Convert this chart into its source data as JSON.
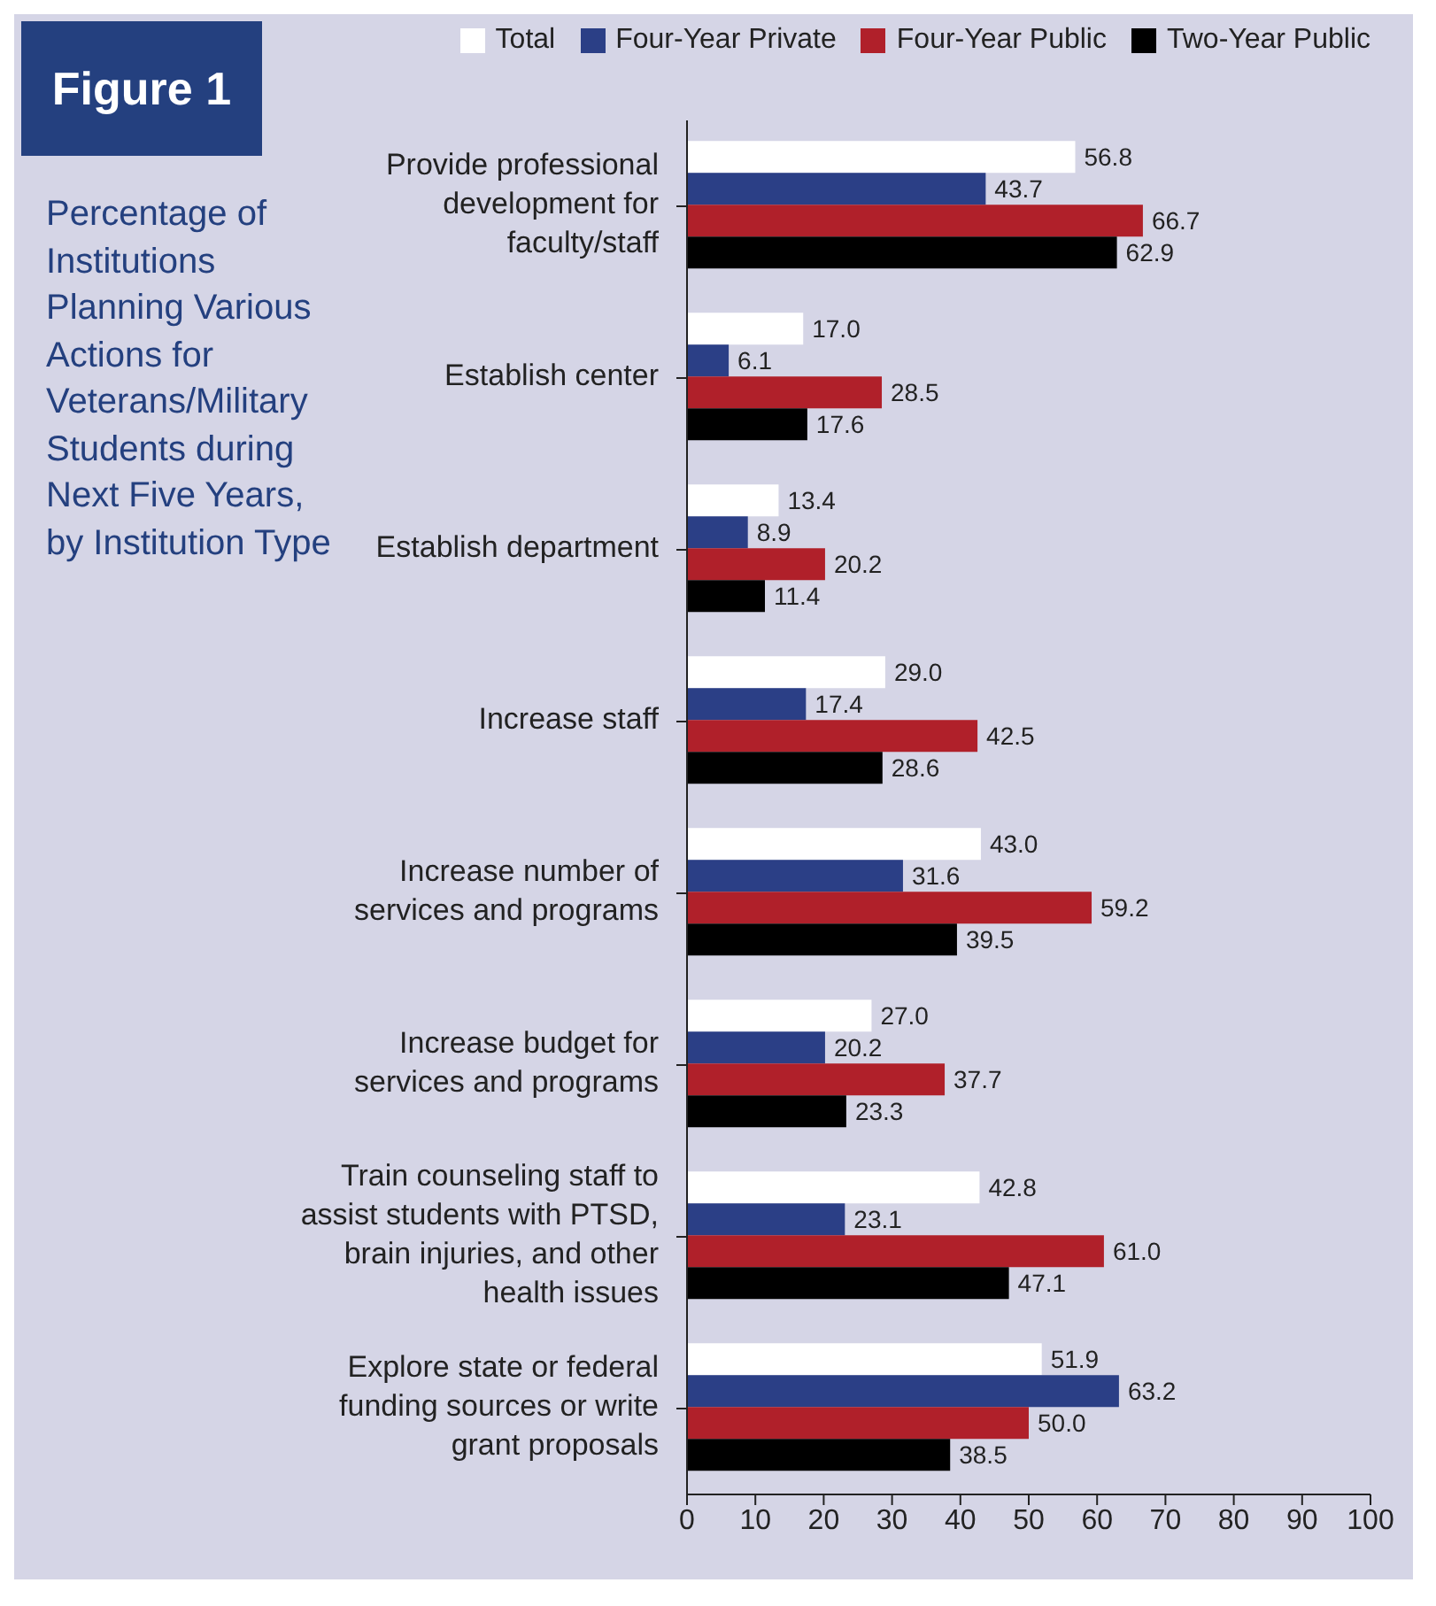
{
  "chart_data": {
    "type": "bar",
    "orientation": "horizontal",
    "title": "Percentage of Institutions Planning Various Actions for Veterans/Military Students during Next Five Years, by Institution Type",
    "annotations": [
      "Figure 1"
    ],
    "categories": [
      "Provide professional development for faculty/staff",
      "Establish center",
      "Establish department",
      "Increase staff",
      "Increase number of services and programs",
      "Increase budget for services and programs",
      "Train counseling staff to assist students with PTSD, brain injuries, and other health issues",
      "Explore state or federal funding sources or write grant proposals"
    ],
    "series": [
      {
        "name": "Total",
        "color": "#ffffff",
        "values": [
          56.8,
          17.0,
          13.4,
          29.0,
          43.0,
          27.0,
          42.8,
          51.9
        ],
        "value_labels": [
          "56.8",
          "17.0",
          "13.4",
          "29.0",
          "43.0",
          "27.0",
          "42.8",
          "51.9"
        ]
      },
      {
        "name": "Four-Year Private",
        "color": "#2b3f86",
        "values": [
          43.7,
          6.1,
          8.9,
          17.4,
          31.6,
          20.2,
          23.1,
          63.2
        ],
        "value_labels": [
          "43.7",
          "6.1",
          "8.9",
          "17.4",
          "31.6",
          "20.2",
          "23.1",
          "63.2"
        ]
      },
      {
        "name": "Four-Year Public",
        "color": "#b0202a",
        "values": [
          66.7,
          28.5,
          20.2,
          42.5,
          59.2,
          37.7,
          61.0,
          50.0
        ],
        "value_labels": [
          "66.7",
          "28.5",
          "20.2",
          "42.5",
          "59.2",
          "37.7",
          "61.0",
          "50.0"
        ]
      },
      {
        "name": "Two-Year Public",
        "color": "#000000",
        "values": [
          62.9,
          17.6,
          11.4,
          28.6,
          39.5,
          23.3,
          47.1,
          38.5
        ],
        "value_labels": [
          "62.9",
          "17.6",
          "11.4",
          "28.6",
          "39.5",
          "23.3",
          "47.1",
          "38.5"
        ]
      }
    ],
    "xlim": [
      0,
      100
    ],
    "xticks": [
      0,
      10,
      20,
      30,
      40,
      50,
      60,
      70,
      80,
      90,
      100
    ],
    "legend": "top"
  }
}
